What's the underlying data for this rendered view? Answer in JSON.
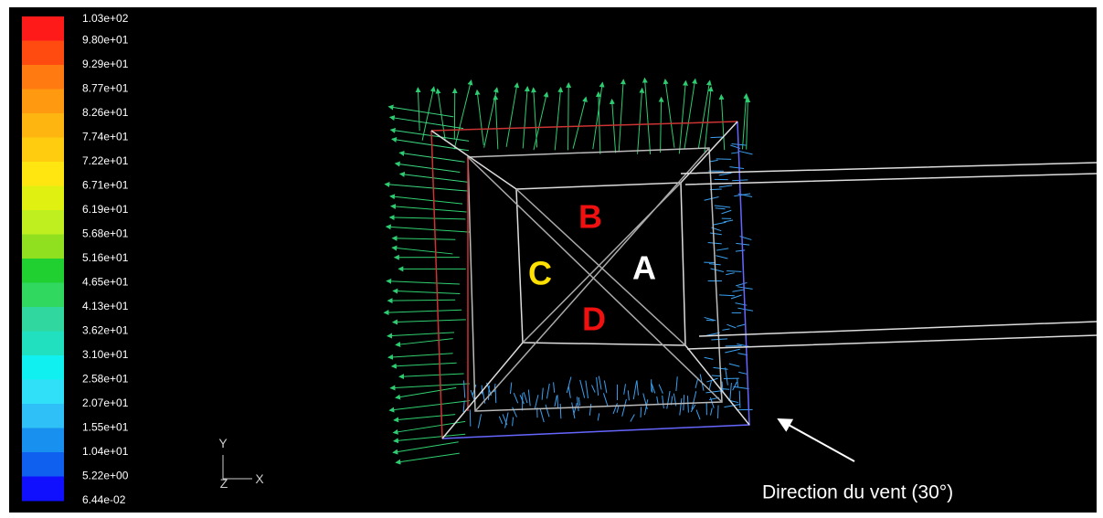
{
  "colorbar": {
    "labels": [
      "1.03e+02",
      "9.80e+01",
      "9.29e+01",
      "8.77e+01",
      "8.26e+01",
      "7.74e+01",
      "7.22e+01",
      "6.71e+01",
      "6.19e+01",
      "5.68e+01",
      "5.16e+01",
      "4.65e+01",
      "4.13e+01",
      "3.62e+01",
      "3.10e+01",
      "2.58e+01",
      "2.07e+01",
      "1.55e+01",
      "1.04e+01",
      "5.22e+00",
      "6.44e-02"
    ]
  },
  "regions": {
    "a": "A",
    "b": "B",
    "c": "C",
    "d": "D"
  },
  "axes": {
    "y": "Y",
    "z": "Z",
    "x": "X"
  },
  "caption": "Direction du vent (30°)"
}
